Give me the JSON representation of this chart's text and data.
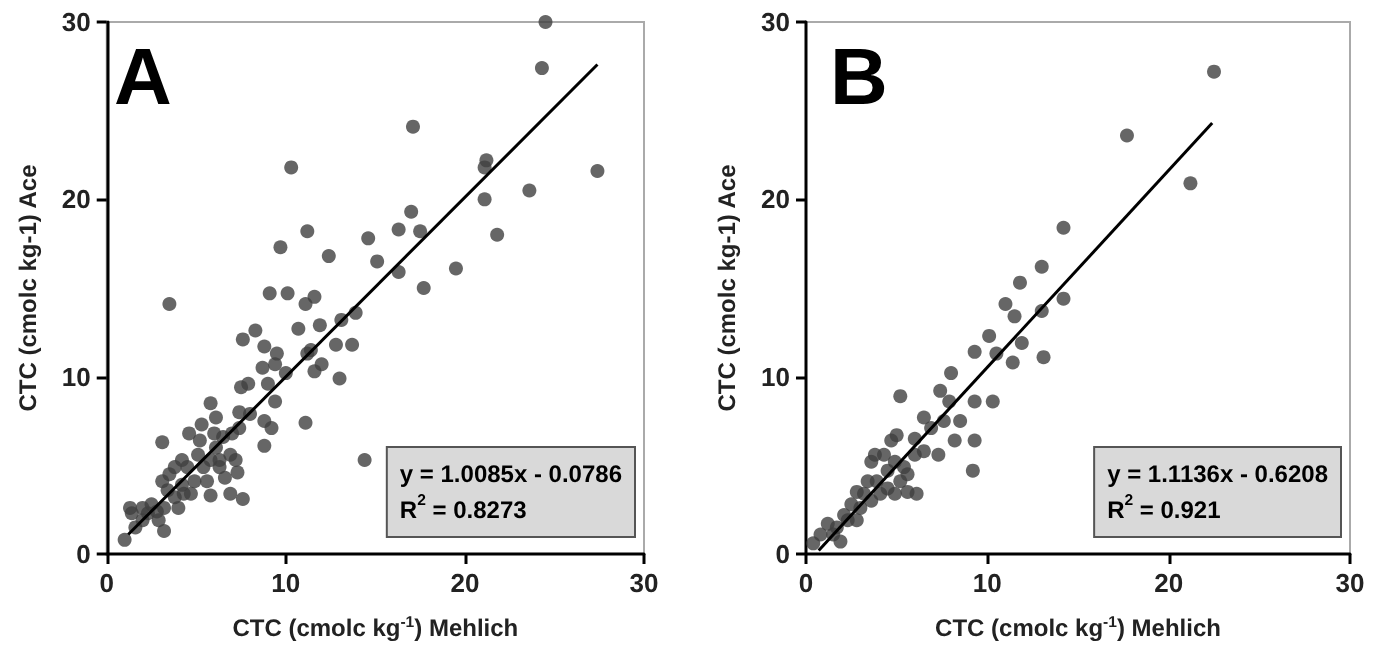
{
  "chart_data": [
    {
      "type": "scatter",
      "title": "A",
      "xlabel": "CTC (cmolc kg$^{-1}$) Mehlich",
      "ylabel": "CTC (cmolc kg-1) Ace",
      "annotations": [
        "y = 1.0085x - 0.0786",
        "R$^{2}$ = 0.8273"
      ],
      "xlim": [
        0,
        30
      ],
      "ylim": [
        0,
        30
      ],
      "xticks": [
        0,
        10,
        20,
        30
      ],
      "yticks": [
        0,
        10,
        20,
        30
      ],
      "series": [
        {
          "color": "#404040",
          "marker": "circle",
          "x": [
            24.5,
            24.3,
            17.1,
            10.3,
            21.2,
            21.1,
            21.1,
            23.6,
            27.4,
            17.0,
            16.3,
            17.5,
            21.8,
            11.2,
            14.6,
            9.7,
            12.4,
            15.1,
            19.5,
            16.3,
            17.7,
            3.5,
            10.1,
            11.6,
            11.1,
            9.1,
            13.9,
            13.1,
            11.9,
            10.7,
            8.3,
            7.6,
            13.7,
            12.8,
            11.4,
            11.2,
            12.0,
            11.6,
            9.5,
            8.8,
            8.7,
            9.4,
            10.0,
            13.0,
            7.9,
            7.5,
            9.0,
            5.8,
            9.4,
            8.8,
            11.1,
            9.2,
            8.8,
            7.4,
            8.0,
            14.4,
            3.1,
            7.6,
            6.9,
            5.8,
            7.3,
            6.6,
            1.0,
            1.3,
            1.4,
            2.0,
            2.3,
            2.8,
            3.2,
            3.2,
            3.8,
            3.5,
            4.2,
            4.5,
            4.6,
            5.1,
            5.2,
            5.4,
            5.8,
            6.0,
            6.1,
            6.5,
            6.9,
            7.0,
            7.4,
            7.2,
            6.3,
            4.9,
            4.3,
            3.4,
            2.5,
            2.0,
            1.6,
            2.9,
            4.0,
            4.7,
            5.6,
            6.3,
            5.3,
            6.1,
            4.2,
            3.8,
            3.1
          ],
          "values": [
            30.0,
            27.4,
            24.1,
            21.8,
            22.2,
            21.8,
            20.0,
            20.5,
            21.6,
            19.3,
            18.3,
            18.2,
            18.0,
            18.2,
            17.8,
            17.3,
            16.8,
            16.5,
            16.1,
            15.9,
            15.0,
            14.1,
            14.7,
            14.5,
            14.1,
            14.7,
            13.6,
            13.2,
            12.9,
            12.7,
            12.6,
            12.1,
            11.8,
            11.8,
            11.5,
            11.3,
            10.7,
            10.3,
            11.3,
            11.7,
            10.5,
            10.7,
            10.2,
            9.9,
            9.6,
            9.4,
            9.6,
            8.5,
            8.6,
            7.5,
            7.4,
            7.1,
            6.1,
            8.0,
            7.9,
            5.3,
            6.3,
            3.1,
            3.4,
            3.3,
            4.6,
            4.3,
            0.8,
            2.6,
            2.3,
            1.9,
            2.3,
            2.4,
            1.3,
            2.6,
            3.2,
            4.5,
            3.9,
            4.9,
            6.8,
            5.6,
            6.4,
            4.9,
            5.3,
            6.8,
            6.0,
            6.6,
            5.6,
            6.8,
            7.1,
            5.3,
            4.9,
            4.1,
            3.4,
            3.6,
            2.8,
            2.6,
            1.5,
            1.9,
            2.6,
            3.4,
            4.1,
            5.3,
            7.3,
            7.7,
            5.3,
            4.9,
            4.1
          ]
        },
        {
          "type": "line",
          "color": "#000000",
          "marker": "none",
          "x": [
            1.2,
            27.4
          ],
          "values": [
            1.1,
            27.6
          ]
        }
      ]
    },
    {
      "type": "scatter",
      "title": "B",
      "xlabel": "CTC (cmolc kg$^{-1}$) Mehlich",
      "ylabel": "CTC (cmolc kg-1) Ace",
      "annotations": [
        "y = 1.1136x - 0.6208",
        "R$^{2}$ = 0.921"
      ],
      "xlim": [
        0,
        30
      ],
      "ylim": [
        0,
        30
      ],
      "xticks": [
        0,
        10,
        20,
        30
      ],
      "yticks": [
        0,
        10,
        20,
        30
      ],
      "series": [
        {
          "color": "#404040",
          "marker": "circle",
          "x": [
            22.5,
            17.7,
            21.2,
            14.2,
            14.2,
            13.0,
            11.8,
            11.0,
            11.5,
            13.0,
            13.1,
            11.9,
            11.4,
            10.1,
            10.5,
            9.3,
            10.3,
            9.3,
            9.3,
            9.2,
            5.2,
            8.0,
            7.9,
            7.4,
            8.5,
            8.2,
            7.3,
            6.5,
            6.9,
            7.6,
            0.4,
            0.8,
            1.2,
            1.7,
            2.1,
            2.5,
            2.8,
            2.8,
            3.4,
            3.6,
            3.9,
            4.3,
            4.5,
            4.9,
            5.2,
            5.6,
            6.0,
            6.0,
            5.0,
            4.7,
            3.8,
            3.2,
            2.3,
            1.5,
            1.9,
            3.0,
            3.6,
            4.1,
            4.5,
            4.9,
            5.6,
            6.1,
            5.4,
            6.5
          ],
          "values": [
            27.2,
            23.6,
            20.9,
            18.4,
            14.4,
            16.2,
            15.3,
            14.1,
            13.4,
            13.7,
            11.1,
            11.9,
            10.8,
            12.3,
            11.3,
            11.4,
            8.6,
            8.6,
            6.4,
            4.7,
            8.9,
            10.2,
            8.6,
            9.2,
            7.5,
            6.4,
            5.6,
            7.7,
            7.1,
            7.5,
            0.6,
            1.1,
            1.7,
            1.5,
            2.2,
            2.8,
            1.9,
            3.5,
            4.1,
            5.2,
            4.1,
            5.6,
            4.7,
            5.2,
            4.1,
            4.5,
            5.6,
            6.5,
            6.7,
            6.4,
            5.6,
            3.4,
            1.9,
            1.1,
            0.7,
            2.6,
            3.0,
            3.4,
            3.7,
            3.4,
            3.5,
            3.4,
            4.9,
            5.8
          ]
        },
        {
          "type": "line",
          "color": "#000000",
          "marker": "none",
          "x": [
            0.7,
            22.4
          ],
          "values": [
            0.2,
            24.3
          ]
        }
      ]
    }
  ]
}
